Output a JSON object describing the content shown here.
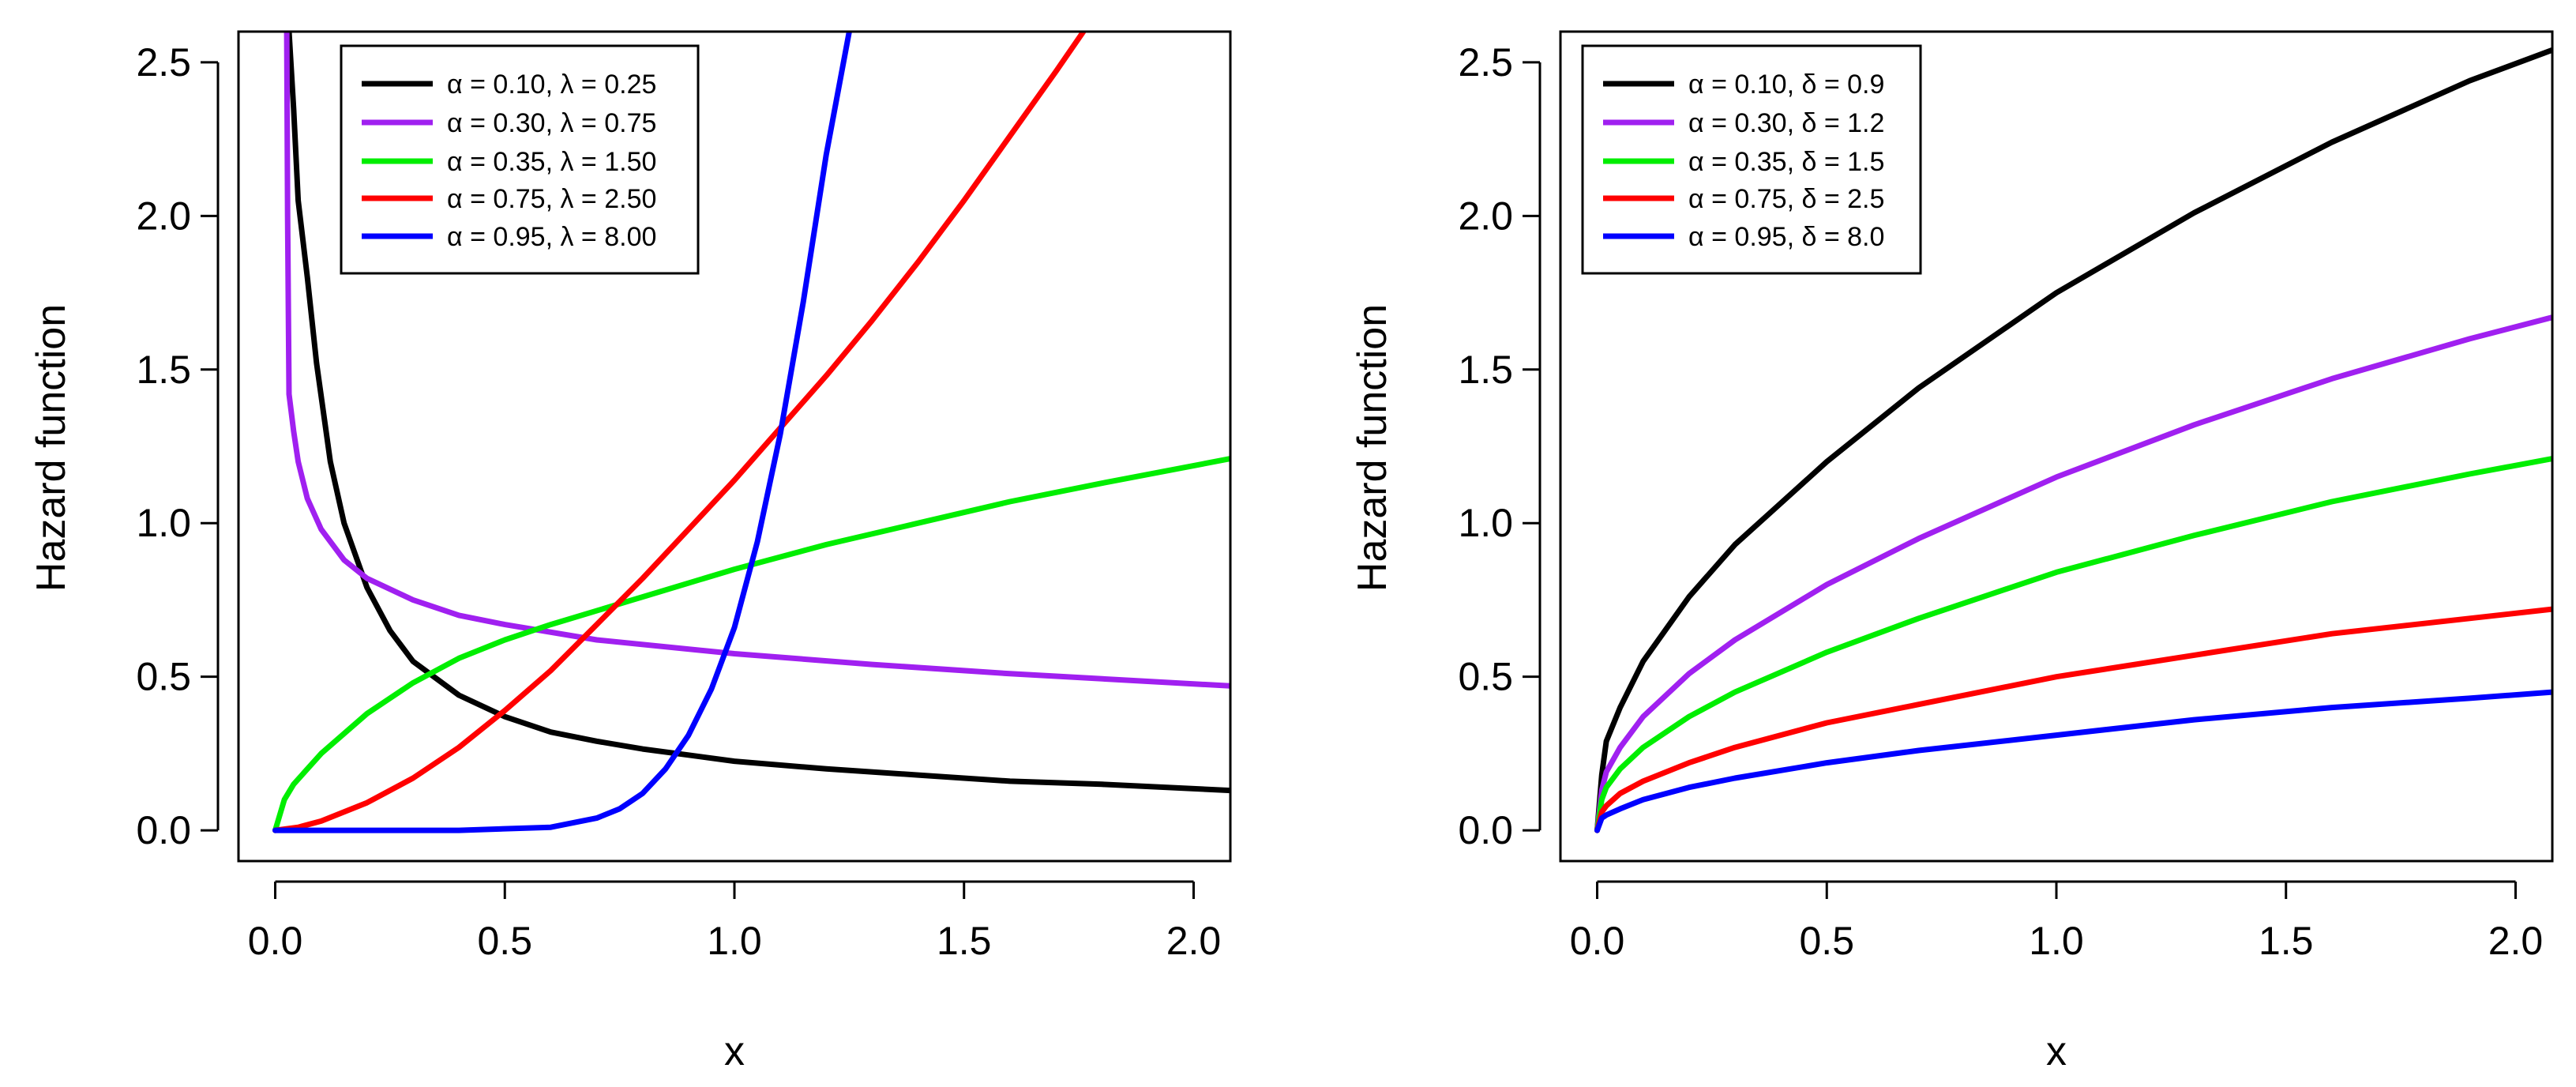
{
  "chart_data": [
    {
      "type": "line",
      "title": "",
      "xlabel": "x",
      "ylabel": "Hazard function",
      "xlim": [
        -0.08,
        2.08
      ],
      "ylim": [
        -0.1,
        2.6
      ],
      "xticks": [
        0.0,
        0.5,
        1.0,
        1.5,
        2.0
      ],
      "xtick_labels": [
        "0.0",
        "0.5",
        "1.0",
        "1.5",
        "2.0"
      ],
      "yticks": [
        0.0,
        0.5,
        1.0,
        1.5,
        2.0,
        2.5
      ],
      "ytick_labels": [
        "0.0",
        "0.5",
        "1.0",
        "1.5",
        "2.0",
        "2.5"
      ],
      "grid": false,
      "legend_position": "top-left",
      "series": [
        {
          "name": "α = 0.10, λ = 0.25",
          "color": "#000000",
          "x": [
            0.03,
            0.04,
            0.05,
            0.07,
            0.09,
            0.12,
            0.15,
            0.2,
            0.25,
            0.3,
            0.4,
            0.5,
            0.6,
            0.7,
            0.8,
            0.9,
            1.0,
            1.2,
            1.4,
            1.6,
            1.8,
            2.08
          ],
          "y": [
            2.6,
            2.35,
            2.05,
            1.8,
            1.52,
            1.2,
            1.0,
            0.79,
            0.65,
            0.55,
            0.44,
            0.37,
            0.32,
            0.29,
            0.265,
            0.245,
            0.225,
            0.2,
            0.18,
            0.16,
            0.15,
            0.13
          ]
        },
        {
          "name": "α = 0.30, λ = 0.75",
          "color": "#a020f0",
          "x": [
            0.025,
            0.027,
            0.03,
            0.04,
            0.05,
            0.07,
            0.1,
            0.15,
            0.2,
            0.3,
            0.4,
            0.5,
            0.7,
            1.0,
            1.3,
            1.6,
            1.9,
            2.08
          ],
          "y": [
            2.6,
            2.0,
            1.42,
            1.3,
            1.2,
            1.08,
            0.98,
            0.88,
            0.82,
            0.75,
            0.7,
            0.67,
            0.62,
            0.575,
            0.54,
            0.51,
            0.485,
            0.47
          ]
        },
        {
          "name": "α = 0.35, λ = 1.50",
          "color": "#00ee00",
          "x": [
            0.0,
            0.02,
            0.04,
            0.1,
            0.2,
            0.3,
            0.4,
            0.5,
            0.6,
            0.8,
            1.0,
            1.2,
            1.4,
            1.6,
            1.8,
            2.08
          ],
          "y": [
            0.0,
            0.1,
            0.15,
            0.25,
            0.38,
            0.48,
            0.56,
            0.62,
            0.67,
            0.76,
            0.85,
            0.93,
            1.0,
            1.07,
            1.13,
            1.21
          ]
        },
        {
          "name": "α = 0.75, λ = 2.50",
          "color": "#ff0000",
          "x": [
            0.0,
            0.05,
            0.1,
            0.2,
            0.3,
            0.4,
            0.5,
            0.6,
            0.7,
            0.8,
            0.9,
            1.0,
            1.1,
            1.2,
            1.3,
            1.4,
            1.5,
            1.6,
            1.7,
            1.76
          ],
          "y": [
            0.0,
            0.01,
            0.03,
            0.09,
            0.17,
            0.27,
            0.39,
            0.52,
            0.67,
            0.82,
            0.98,
            1.14,
            1.31,
            1.48,
            1.66,
            1.85,
            2.05,
            2.26,
            2.47,
            2.6
          ]
        },
        {
          "name": "α = 0.95, λ = 8.00",
          "color": "#0000ff",
          "x": [
            0.0,
            0.4,
            0.6,
            0.7,
            0.75,
            0.8,
            0.85,
            0.9,
            0.95,
            1.0,
            1.05,
            1.1,
            1.15,
            1.2,
            1.25
          ],
          "y": [
            0.0,
            0.0,
            0.01,
            0.04,
            0.07,
            0.12,
            0.2,
            0.31,
            0.46,
            0.66,
            0.94,
            1.29,
            1.72,
            2.2,
            2.6
          ]
        }
      ]
    },
    {
      "type": "line",
      "title": "",
      "xlabel": "x",
      "ylabel": "Hazard function",
      "xlim": [
        -0.08,
        2.08
      ],
      "ylim": [
        -0.1,
        2.6
      ],
      "xticks": [
        0.0,
        0.5,
        1.0,
        1.5,
        2.0
      ],
      "xtick_labels": [
        "0.0",
        "0.5",
        "1.0",
        "1.5",
        "2.0"
      ],
      "yticks": [
        0.0,
        0.5,
        1.0,
        1.5,
        2.0,
        2.5
      ],
      "ytick_labels": [
        "0.0",
        "0.5",
        "1.0",
        "1.5",
        "2.0",
        "2.5"
      ],
      "grid": false,
      "legend_position": "top-left",
      "series": [
        {
          "name": "α = 0.10, δ = 0.9",
          "color": "#000000",
          "x": [
            0.0,
            0.01,
            0.02,
            0.05,
            0.1,
            0.2,
            0.3,
            0.5,
            0.7,
            1.0,
            1.3,
            1.6,
            1.9,
            2.08
          ],
          "y": [
            0.0,
            0.18,
            0.29,
            0.4,
            0.55,
            0.76,
            0.93,
            1.2,
            1.44,
            1.75,
            2.01,
            2.24,
            2.44,
            2.54
          ]
        },
        {
          "name": "α = 0.30, δ = 1.2",
          "color": "#a020f0",
          "x": [
            0.0,
            0.01,
            0.02,
            0.05,
            0.1,
            0.2,
            0.3,
            0.5,
            0.7,
            1.0,
            1.3,
            1.6,
            1.9,
            2.08
          ],
          "y": [
            0.0,
            0.13,
            0.19,
            0.27,
            0.37,
            0.51,
            0.62,
            0.8,
            0.95,
            1.15,
            1.32,
            1.47,
            1.6,
            1.67
          ]
        },
        {
          "name": "α = 0.35, δ = 1.5",
          "color": "#00ee00",
          "x": [
            0.0,
            0.01,
            0.02,
            0.05,
            0.1,
            0.2,
            0.3,
            0.5,
            0.7,
            1.0,
            1.3,
            1.6,
            1.9,
            2.08
          ],
          "y": [
            0.0,
            0.1,
            0.14,
            0.2,
            0.27,
            0.37,
            0.45,
            0.58,
            0.69,
            0.84,
            0.96,
            1.07,
            1.16,
            1.21
          ]
        },
        {
          "name": "α = 0.75, δ = 2.5",
          "color": "#ff0000",
          "x": [
            0.0,
            0.01,
            0.02,
            0.05,
            0.1,
            0.2,
            0.3,
            0.5,
            0.7,
            1.0,
            1.3,
            1.6,
            1.9,
            2.08
          ],
          "y": [
            0.0,
            0.06,
            0.08,
            0.12,
            0.16,
            0.22,
            0.27,
            0.35,
            0.41,
            0.5,
            0.57,
            0.64,
            0.69,
            0.72
          ]
        },
        {
          "name": "α = 0.95, δ = 8.0",
          "color": "#0000ff",
          "x": [
            0.0,
            0.01,
            0.02,
            0.05,
            0.1,
            0.2,
            0.3,
            0.5,
            0.7,
            1.0,
            1.3,
            1.6,
            1.9,
            2.08
          ],
          "y": [
            0.0,
            0.04,
            0.05,
            0.07,
            0.1,
            0.14,
            0.17,
            0.22,
            0.26,
            0.31,
            0.36,
            0.4,
            0.43,
            0.45
          ]
        }
      ]
    }
  ]
}
